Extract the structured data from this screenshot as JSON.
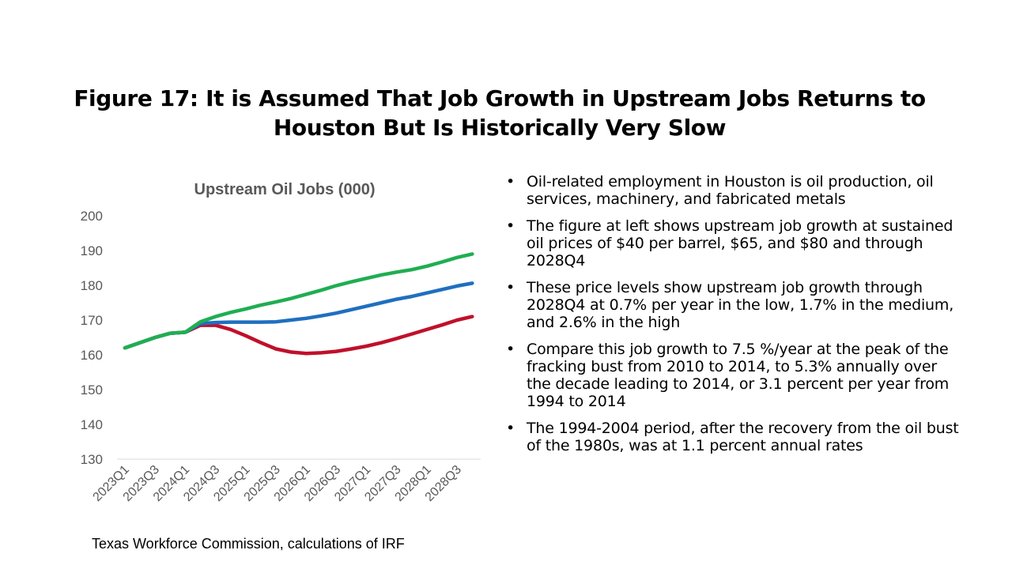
{
  "slide": {
    "title_line1": "Figure 17: It is Assumed That Job Growth in Upstream Jobs Returns to",
    "title_line2": "Houston But Is Historically Very Slow",
    "source": "Texas Workforce Commission, calculations of IRF"
  },
  "bullets": [
    "Oil-related employment in Houston is oil production, oil services, machinery, and fabricated metals",
    "The figure at left shows upstream job growth at sustained oil prices of $40 per barrel, $65, and $80 and through 2028Q4",
    "These price levels show upstream  job growth through 2028Q4 at 0.7% per year in the low, 1.7% in the medium, and 2.6% in the high",
    "Compare this job growth to 7.5 %/year at the peak of the fracking bust from 2010 to 2014, to 5.3% annually over the decade leading to 2014, or 3.1 percent per year from 1994 to 2014",
    "The 1994-2004 period, after the recovery from the oil bust of the 1980s, was at 1.1 percent annual rates"
  ],
  "chart_data": {
    "type": "line",
    "title": "Upstream Oil Jobs (000)",
    "xlabel": "",
    "ylabel": "",
    "ylim": [
      130,
      200
    ],
    "yticks": [
      130,
      140,
      150,
      160,
      170,
      180,
      190,
      200
    ],
    "grid": false,
    "legend": "none",
    "categories": [
      "2023Q1",
      "2023Q2",
      "2023Q3",
      "2023Q4",
      "2024Q1",
      "2024Q2",
      "2024Q3",
      "2024Q4",
      "2025Q1",
      "2025Q2",
      "2025Q3",
      "2025Q4",
      "2026Q1",
      "2026Q2",
      "2026Q3",
      "2026Q4",
      "2027Q1",
      "2027Q2",
      "2027Q3",
      "2027Q4",
      "2028Q1",
      "2028Q2",
      "2028Q3",
      "2028Q4"
    ],
    "tick_labels": [
      "2023Q1",
      "2023Q3",
      "2024Q1",
      "2024Q3",
      "2025Q1",
      "2025Q3",
      "2026Q1",
      "2026Q3",
      "2027Q1",
      "2027Q3",
      "2028Q1",
      "2028Q3"
    ],
    "series": [
      {
        "color": "#c0102a",
        "values": [
          162,
          163.5,
          165,
          166.2,
          166.5,
          168.5,
          168.5,
          167.3,
          165.5,
          163.5,
          161.7,
          160.8,
          160.4,
          160.6,
          161.0,
          161.7,
          162.5,
          163.5,
          164.7,
          166.0,
          167.3,
          168.6,
          170.0,
          171.0
        ]
      },
      {
        "color": "#1f6fc0",
        "values": [
          162,
          163.5,
          165,
          166.2,
          166.5,
          169.0,
          169.3,
          169.4,
          169.4,
          169.4,
          169.5,
          170.0,
          170.5,
          171.2,
          172.0,
          173.0,
          174.0,
          175.0,
          176.0,
          176.8,
          177.8,
          178.8,
          179.8,
          180.6
        ]
      },
      {
        "color": "#1fae52",
        "values": [
          162,
          163.5,
          165,
          166.2,
          166.5,
          169.5,
          171.0,
          172.2,
          173.2,
          174.3,
          175.2,
          176.2,
          177.4,
          178.6,
          179.9,
          181.0,
          182.0,
          183.0,
          183.8,
          184.5,
          185.5,
          186.7,
          188.0,
          189.0
        ]
      }
    ]
  }
}
